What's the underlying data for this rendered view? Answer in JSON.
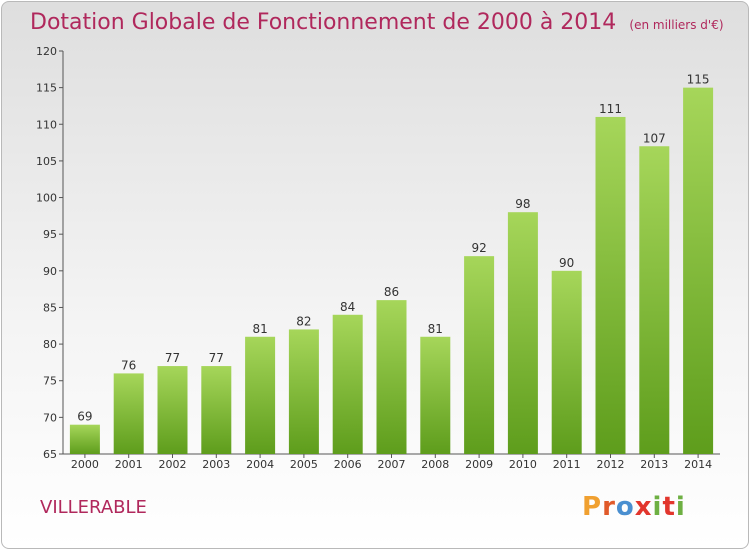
{
  "header": {
    "title": "Dotation Globale de Fonctionnement de 2000 à 2014",
    "unit": "(en milliers d'€)"
  },
  "footer": {
    "commune": "VILLERABLE",
    "logo_letters": [
      "P",
      "r",
      "o",
      "x",
      "i",
      "t",
      "i"
    ],
    "logo_colors": [
      "#f0a030",
      "#e05a2a",
      "#4a8fd0",
      "#e2362d",
      "#6eb043",
      "#e2362d",
      "#6eb043"
    ]
  },
  "colors": {
    "bar_light": "#a6d65a",
    "bar_dark": "#5e9d1c",
    "title": "#b0285c"
  },
  "chart_data": {
    "type": "bar",
    "categories": [
      "2000",
      "2001",
      "2002",
      "2003",
      "2004",
      "2005",
      "2006",
      "2007",
      "2008",
      "2009",
      "2010",
      "2011",
      "2012",
      "2013",
      "2014"
    ],
    "values": [
      69,
      76,
      77,
      77,
      81,
      82,
      84,
      86,
      81,
      92,
      98,
      90,
      111,
      107,
      115
    ],
    "ylim": [
      65,
      120
    ],
    "yticks": [
      65,
      70,
      75,
      80,
      85,
      90,
      95,
      100,
      105,
      110,
      115,
      120
    ],
    "grid": false
  }
}
